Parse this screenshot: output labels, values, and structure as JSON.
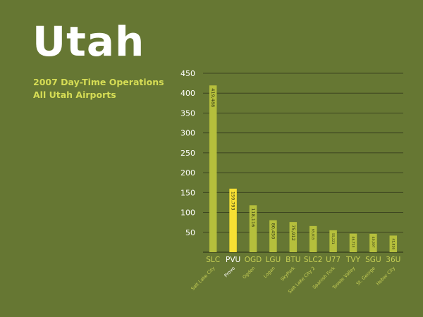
{
  "heading": {
    "title": "Utah",
    "subtitle_line1": "2007 Day-Time Operations",
    "subtitle_line2": "All Utah Airports"
  },
  "colors": {
    "background": "#667733",
    "bar": "#b5bf3c",
    "highlight_bar": "#f7e033",
    "text_white": "#ffffff",
    "subtitle": "#d6dd55",
    "code_label": "#c6cf55",
    "city_label": "#c6cf55",
    "gridline": "#3c4420"
  },
  "chart_data": {
    "type": "bar",
    "title": "",
    "xlabel": "",
    "ylabel": "",
    "ylim": [
      0,
      450
    ],
    "yticks": [
      50,
      100,
      150,
      200,
      250,
      300,
      350,
      400,
      450
    ],
    "grid": true,
    "highlight_index": 1,
    "categories": [
      "SLC",
      "PVU",
      "OGD",
      "LGU",
      "BTU",
      "SLC2",
      "U77",
      "TVY",
      "SGU",
      "36U"
    ],
    "city_labels": [
      "Salt Lake City",
      "Provo",
      "Ogden",
      "Logan",
      "SkyPark",
      "Salt Lake City 2",
      "Spanish Fork",
      "Tooele Valley",
      "St. George",
      "Heber City"
    ],
    "values": [
      419488,
      159793,
      118116,
      80450,
      75912,
      65815,
      55221,
      46715,
      46307,
      41816
    ],
    "value_labels": [
      "419,488",
      "159,793",
      "118,116",
      "80,450",
      "75,912",
      "65,815",
      "55,221",
      "46,715",
      "46,307",
      "41,816"
    ]
  }
}
